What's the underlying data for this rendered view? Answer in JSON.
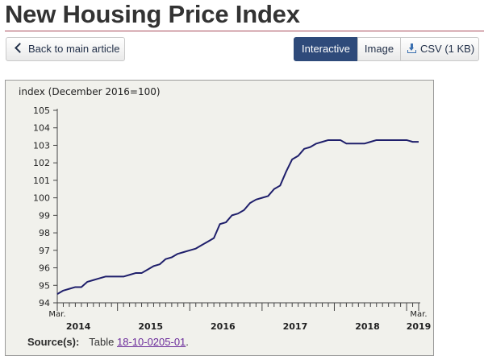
{
  "page": {
    "title": "New Housing Price Index"
  },
  "toolbar": {
    "back_label": "Back to main article",
    "view_tabs": [
      {
        "label": "Interactive",
        "active": true
      },
      {
        "label": "Image",
        "active": false
      },
      {
        "label": "CSV (1 KB)",
        "active": false,
        "icon": "download-icon"
      }
    ]
  },
  "colors": {
    "line": "#1f1f6b",
    "active_tab": "#2e4a7a",
    "panel": "#f1f1ec",
    "title_rule": "#a84a5a",
    "link": "#6a2a9a"
  },
  "source": {
    "label": "Source(s):",
    "prefix": "Table",
    "table_link": "18-10-0205-01",
    "suffix": "."
  },
  "chart_data": {
    "type": "line",
    "ylabel": "index (December 2016=100)",
    "ylim": [
      94,
      105
    ],
    "yticks": [
      94,
      95,
      96,
      97,
      98,
      99,
      100,
      101,
      102,
      103,
      104,
      105
    ],
    "xrange": [
      "2014-03",
      "2019-03"
    ],
    "x_start_label": "Mar.",
    "x_end_label": "Mar.",
    "year_labels": [
      "2014",
      "2015",
      "2016",
      "2017",
      "2018",
      "2019"
    ],
    "grid": false,
    "series": [
      {
        "values": [
          94.5,
          94.7,
          94.8,
          94.9,
          94.9,
          95.2,
          95.3,
          95.4,
          95.5,
          95.5,
          95.5,
          95.5,
          95.6,
          95.7,
          95.7,
          95.9,
          96.1,
          96.2,
          96.5,
          96.6,
          96.8,
          96.9,
          97.0,
          97.1,
          97.3,
          97.5,
          97.7,
          98.5,
          98.6,
          99.0,
          99.1,
          99.3,
          99.7,
          99.9,
          100.0,
          100.1,
          100.5,
          100.7,
          101.5,
          102.2,
          102.4,
          102.8,
          102.9,
          103.1,
          103.2,
          103.3,
          103.3,
          103.3,
          103.1,
          103.1,
          103.1,
          103.1,
          103.2,
          103.3,
          103.3,
          103.3,
          103.3,
          103.3,
          103.3,
          103.2,
          103.2
        ]
      }
    ]
  }
}
